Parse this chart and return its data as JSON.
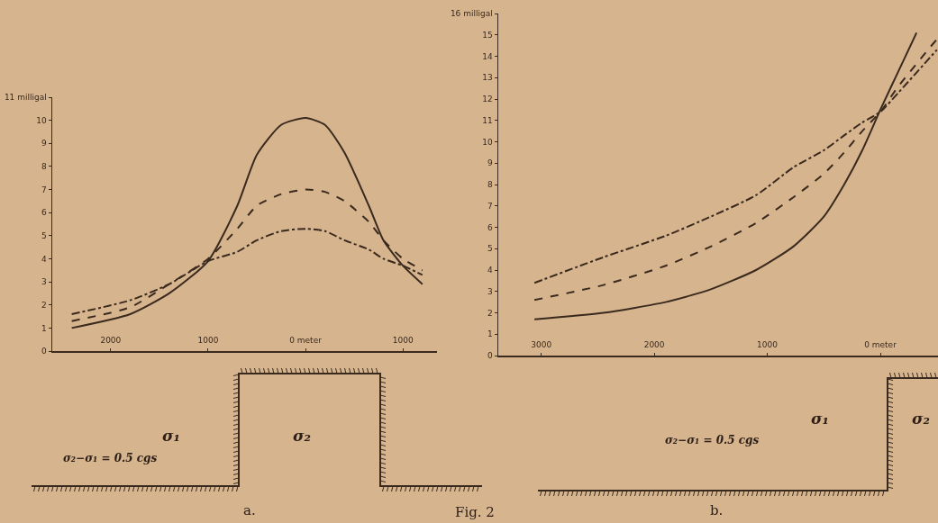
{
  "chart_data": [
    {
      "type": "line",
      "xlim": [
        -2600,
        1350
      ],
      "ylim": [
        0,
        11
      ],
      "xticks": [
        {
          "value": -2000,
          "label": "2000"
        },
        {
          "value": -1000,
          "label": "1000"
        },
        {
          "value": 0,
          "label": "0 meter"
        },
        {
          "value": 1000,
          "label": "1000"
        }
      ],
      "yticks": [
        0,
        1,
        2,
        3,
        4,
        5,
        6,
        7,
        8,
        9,
        10,
        {
          "value": 11,
          "label": "11 milligal"
        }
      ],
      "grid": false,
      "marker": "none",
      "x": [
        -2400,
        -1800,
        -1400,
        -1000,
        -700,
        -500,
        -250,
        0,
        200,
        400,
        650,
        800,
        1000,
        1200
      ],
      "series": [
        {
          "color": "#3a2a1e",
          "line_style": "solid",
          "values": [
            1.0,
            1.6,
            2.5,
            3.9,
            6.3,
            8.5,
            9.8,
            10.1,
            9.8,
            8.6,
            6.3,
            4.8,
            3.7,
            2.9
          ]
        },
        {
          "color": "#3a2a1e",
          "line_style": "dashed",
          "values": [
            1.3,
            1.9,
            2.9,
            4.0,
            5.3,
            6.3,
            6.8,
            7.0,
            6.9,
            6.5,
            5.6,
            4.8,
            4.0,
            3.5
          ]
        },
        {
          "color": "#3a2a1e",
          "line_style": "dashdot",
          "values": [
            1.6,
            2.2,
            2.9,
            3.9,
            4.3,
            4.8,
            5.2,
            5.3,
            5.2,
            4.8,
            4.4,
            4.0,
            3.7,
            3.3
          ]
        }
      ],
      "annotations": [
        "σ₁",
        "σ₂",
        "σ₂−σ₁ = 0.5 cgs",
        "a.",
        "Fig. 2"
      ]
    },
    {
      "type": "line",
      "xlim": [
        -3380,
        510
      ],
      "ylim": [
        0,
        16
      ],
      "xticks": [
        {
          "value": -3000,
          "label": "3000"
        },
        {
          "value": -2000,
          "label": "2000"
        },
        {
          "value": -1000,
          "label": "1000"
        },
        {
          "value": 0,
          "label": "0 meter"
        }
      ],
      "yticks": [
        0,
        1,
        2,
        3,
        4,
        5,
        6,
        7,
        8,
        9,
        10,
        11,
        12,
        13,
        14,
        15,
        {
          "value": 16,
          "label": "16 milligal"
        }
      ],
      "grid": false,
      "marker": "none",
      "series": [
        {
          "color": "#3a2a1e",
          "line_style": "solid",
          "x": [
            -3060,
            -2450,
            -1900,
            -1500,
            -1100,
            -770,
            -500,
            -320,
            -160,
            0,
            160,
            320
          ],
          "values": [
            1.7,
            2.0,
            2.5,
            3.1,
            4.0,
            5.1,
            6.5,
            8.0,
            9.6,
            11.5,
            13.3,
            15.1
          ]
        },
        {
          "color": "#3a2a1e",
          "line_style": "dashed",
          "x": [
            -3060,
            -2450,
            -1900,
            -1500,
            -1100,
            -770,
            -500,
            -320,
            -160,
            0,
            160,
            500
          ],
          "values": [
            2.6,
            3.3,
            4.2,
            5.1,
            6.2,
            7.4,
            8.5,
            9.5,
            10.5,
            11.4,
            12.6,
            14.8
          ]
        },
        {
          "color": "#3a2a1e",
          "line_style": "dashdot",
          "x": [
            -3060,
            -2450,
            -1900,
            -1500,
            -1100,
            -770,
            -500,
            -320,
            -160,
            0,
            160,
            500
          ],
          "values": [
            3.4,
            4.6,
            5.6,
            6.5,
            7.5,
            8.8,
            9.6,
            10.3,
            10.9,
            11.4,
            12.3,
            14.3
          ]
        }
      ],
      "annotations": [
        "σ₁",
        "σ₂",
        "σ₂−σ₁ = 0.5 cgs",
        "b."
      ]
    }
  ]
}
